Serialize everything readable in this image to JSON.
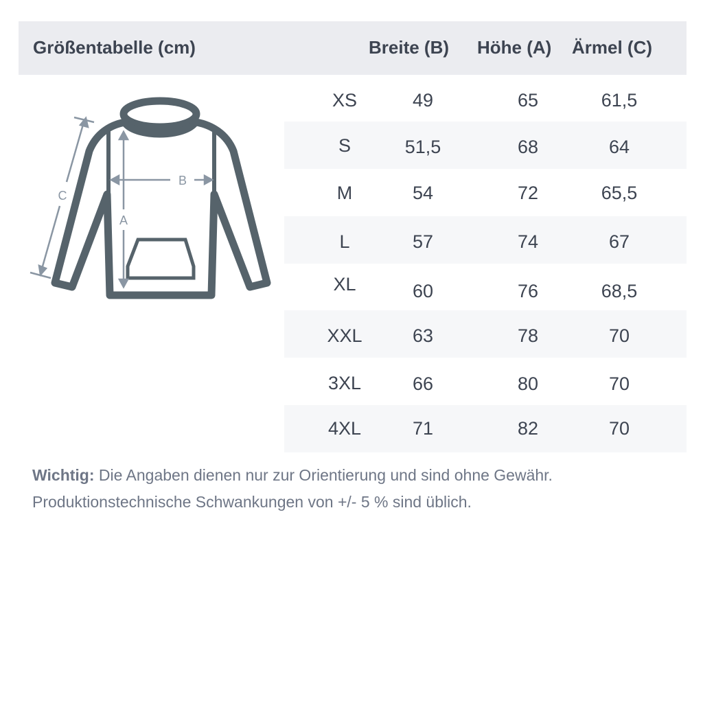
{
  "title": "Größentabelle (cm)",
  "columns": [
    "Breite (B)",
    "Höhe (A)",
    "Ärmel (C)"
  ],
  "rows": [
    {
      "size": "XS",
      "b": "49",
      "a": "65",
      "c": "61,5"
    },
    {
      "size": "S",
      "b": "51,5",
      "a": "68",
      "c": "64"
    },
    {
      "size": "M",
      "b": "54",
      "a": "72",
      "c": "65,5"
    },
    {
      "size": "L",
      "b": "57",
      "a": "74",
      "c": "67"
    },
    {
      "size": "XL",
      "b": "60",
      "a": "76",
      "c": "68,5"
    },
    {
      "size": "XXL",
      "b": "63",
      "a": "78",
      "c": "70"
    },
    {
      "size": "3XL",
      "b": "66",
      "a": "80",
      "c": "70"
    },
    {
      "size": "4XL",
      "b": "71",
      "a": "82",
      "c": "70"
    }
  ],
  "diagram": {
    "label_a": "A",
    "label_b": "B",
    "label_c": "C"
  },
  "note": {
    "bold": "Wichtig:",
    "line1": " Die Angaben dienen nur zur Orientierung und sind ohne Gewähr.",
    "line2": "Produktionstechnische Schwankungen von +/- 5 % sind üblich."
  },
  "colors": {
    "header_bg": "#ebecf0",
    "stripe_bg": "#f6f7f9",
    "outline": "#56636b",
    "measure": "#8a96a3"
  }
}
